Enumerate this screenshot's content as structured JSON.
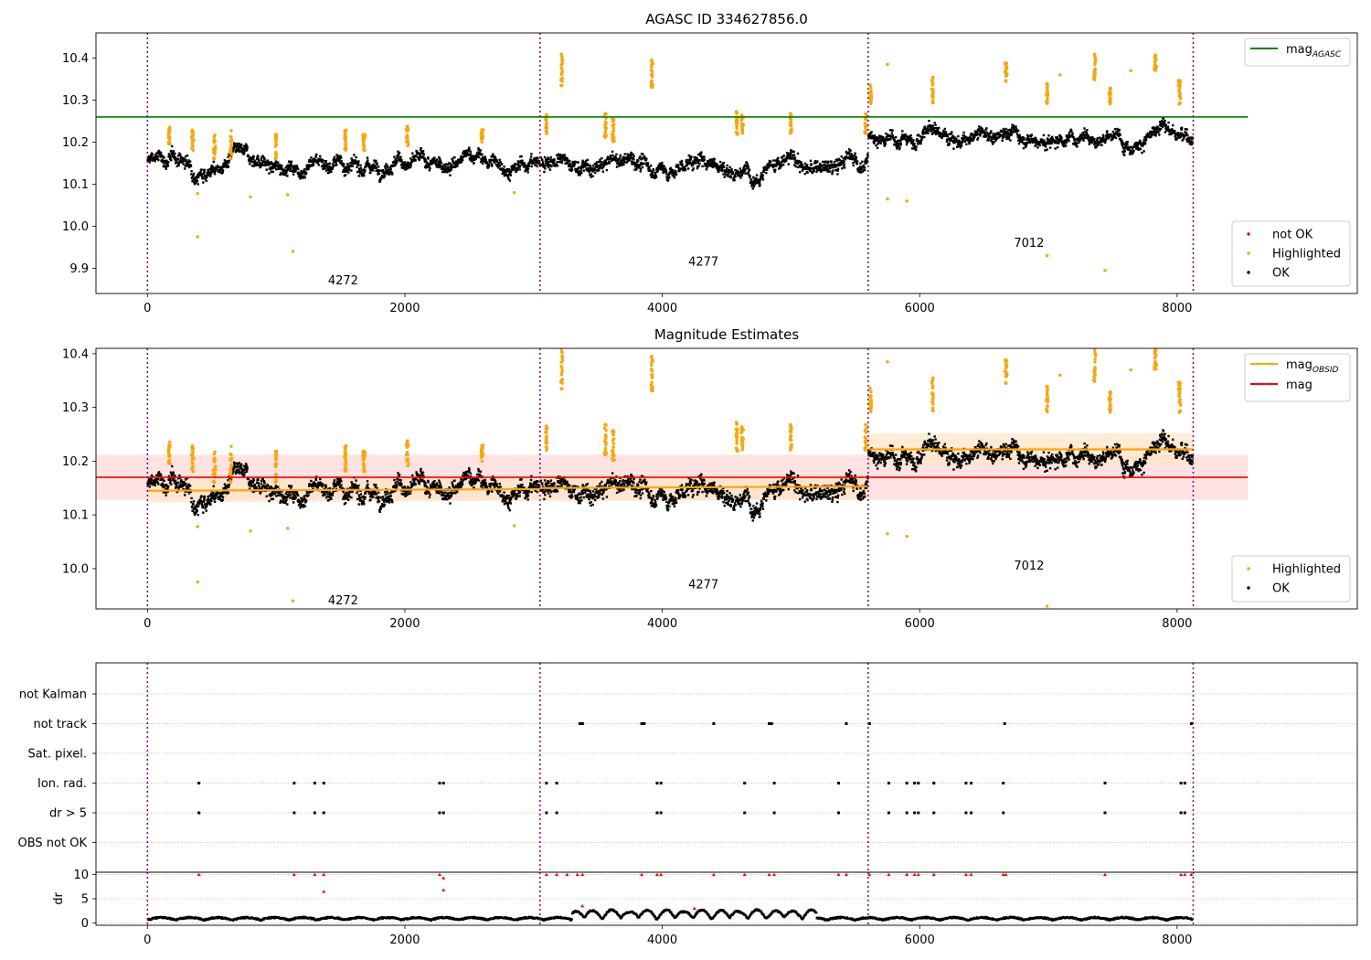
{
  "figure": {
    "title": "AGASC ID 334627856.0",
    "colors": {
      "ok": "#000000",
      "highlighted": "#ffa500",
      "not_ok": "#ff0000",
      "agasc_line": "#008000",
      "obs_boundary": "#800080",
      "mag_line": "#ff0000",
      "mag_band": "#ffdddd",
      "obsid_band": "#ffe6c8"
    }
  },
  "chart_data": [
    {
      "type": "scatter",
      "title": "",
      "xlim": [
        -400,
        9400
      ],
      "ylim": [
        9.84,
        10.46
      ],
      "xticks": [
        0,
        2000,
        4000,
        6000,
        8000
      ],
      "yticks": [
        9.9,
        10.0,
        10.1,
        10.2,
        10.3,
        10.4
      ],
      "obs_boundaries": [
        0,
        3050,
        5600,
        8125
      ],
      "obsids": [
        {
          "label": "4272",
          "x": 1520,
          "y": 9.87
        },
        {
          "label": "4277",
          "x": 4320,
          "y": 9.915
        },
        {
          "label": "7012",
          "x": 6850,
          "y": 9.96
        }
      ],
      "hlines": [
        {
          "name": "mag_AGASC",
          "y": 10.26,
          "x": [
            -400,
            8550
          ]
        }
      ],
      "legend_upper": [
        {
          "label": "mag",
          "sub": "AGASC",
          "kind": "line",
          "color": "#008000"
        }
      ],
      "legend_lower": [
        {
          "label": "not OK",
          "color": "#ff0000"
        },
        {
          "label": "Highlighted",
          "color": "#ffa500"
        },
        {
          "label": "OK",
          "color": "#000000"
        }
      ],
      "segments": [
        {
          "x0": 0,
          "x1": 3050,
          "base": 10.15,
          "noise": 0.035
        },
        {
          "x0": 3050,
          "x1": 5600,
          "base": 10.145,
          "noise": 0.038
        },
        {
          "x0": 5600,
          "x1": 8125,
          "base": 10.215,
          "noise": 0.035
        }
      ],
      "highlighted_clusters": [
        {
          "x": 170,
          "y": [
            10.19,
            10.24
          ]
        },
        {
          "x": 350,
          "y": [
            10.18,
            10.23
          ]
        },
        {
          "x": 520,
          "y": [
            10.16,
            10.22
          ]
        },
        {
          "x": 650,
          "y": [
            10.16,
            10.23
          ]
        },
        {
          "x": 1000,
          "y": [
            10.16,
            10.22
          ]
        },
        {
          "x": 1540,
          "y": [
            10.18,
            10.23
          ]
        },
        {
          "x": 1680,
          "y": [
            10.18,
            10.22
          ]
        },
        {
          "x": 2020,
          "y": [
            10.19,
            10.24
          ]
        },
        {
          "x": 2600,
          "y": [
            10.2,
            10.23
          ]
        },
        {
          "x": 3100,
          "y": [
            10.22,
            10.27
          ]
        },
        {
          "x": 3220,
          "y": [
            10.33,
            10.41
          ]
        },
        {
          "x": 3560,
          "y": [
            10.21,
            10.27
          ]
        },
        {
          "x": 3620,
          "y": [
            10.2,
            10.26
          ]
        },
        {
          "x": 3920,
          "y": [
            10.33,
            10.4
          ]
        },
        {
          "x": 4580,
          "y": [
            10.21,
            10.28
          ]
        },
        {
          "x": 4620,
          "y": [
            10.22,
            10.27
          ]
        },
        {
          "x": 5000,
          "y": [
            10.22,
            10.27
          ]
        },
        {
          "x": 5580,
          "y": [
            10.22,
            10.27
          ]
        },
        {
          "x": 5620,
          "y": [
            10.29,
            10.34
          ]
        },
        {
          "x": 6100,
          "y": [
            10.29,
            10.36
          ]
        },
        {
          "x": 6670,
          "y": [
            10.34,
            10.39
          ]
        },
        {
          "x": 6990,
          "y": [
            10.29,
            10.34
          ]
        },
        {
          "x": 7360,
          "y": [
            10.34,
            10.41
          ]
        },
        {
          "x": 7480,
          "y": [
            10.29,
            10.33
          ]
        },
        {
          "x": 7830,
          "y": [
            10.37,
            10.41
          ]
        },
        {
          "x": 8020,
          "y": [
            10.29,
            10.35
          ]
        }
      ],
      "highlighted_outliers": [
        {
          "x": 390,
          "y": 9.975
        },
        {
          "x": 1130,
          "y": 9.94
        },
        {
          "x": 5750,
          "y": 10.385
        },
        {
          "x": 5750,
          "y": 10.065
        },
        {
          "x": 5900,
          "y": 10.06
        },
        {
          "x": 6990,
          "y": 9.93
        },
        {
          "x": 7440,
          "y": 9.895
        },
        {
          "x": 7090,
          "y": 10.36
        },
        {
          "x": 7640,
          "y": 10.37
        },
        {
          "x": 2850,
          "y": 10.08
        },
        {
          "x": 800,
          "y": 10.07
        },
        {
          "x": 1090,
          "y": 10.075
        },
        {
          "x": 390,
          "y": 10.078
        }
      ]
    },
    {
      "type": "scatter",
      "title": "Magnitude Estimates",
      "xlim": [
        -400,
        9400
      ],
      "ylim": [
        9.925,
        10.41
      ],
      "xticks": [
        0,
        2000,
        4000,
        6000,
        8000
      ],
      "yticks": [
        10.0,
        10.1,
        10.2,
        10.3,
        10.4
      ],
      "obs_boundaries": [
        0,
        3050,
        5600,
        8125
      ],
      "obsids": [
        {
          "label": "4272",
          "x": 1520,
          "y": 9.94
        },
        {
          "label": "4277",
          "x": 4320,
          "y": 9.97
        },
        {
          "label": "7012",
          "x": 6850,
          "y": 10.005
        }
      ],
      "mag": {
        "value": 10.17,
        "band": [
          10.128,
          10.212
        ],
        "x": [
          -400,
          8550
        ]
      },
      "mag_obsid": [
        {
          "x0": 0,
          "x1": 3050,
          "y0": 10.145,
          "y1": 10.148,
          "band": 0.022
        },
        {
          "x0": 3050,
          "x1": 5600,
          "y0": 10.15,
          "y1": 10.153,
          "band": 0.025
        },
        {
          "x0": 5600,
          "x1": 8125,
          "y0": 10.222,
          "y1": 10.222,
          "band": 0.03
        }
      ],
      "legend_upper": [
        {
          "label": "mag",
          "sub": "OBSID",
          "kind": "line",
          "color": "#ffa500"
        },
        {
          "label": "mag",
          "sub": "",
          "kind": "line",
          "color": "#ff0000"
        }
      ],
      "legend_lower": [
        {
          "label": "Highlighted",
          "color": "#ffa500"
        },
        {
          "label": "OK",
          "color": "#000000"
        }
      ]
    },
    {
      "type": "scatter",
      "title": "",
      "xlim": [
        -400,
        9400
      ],
      "xticks": [
        0,
        2000,
        4000,
        6000,
        8000
      ],
      "obs_boundaries": [
        0,
        3050,
        5600,
        8125
      ],
      "flag_rows": [
        "not Kalman",
        "not track",
        "Sat. pixel.",
        "Ion. rad.",
        "dr > 5",
        "OBS not OK"
      ],
      "flag_points": {
        "not track": [
          3360,
          3380,
          3840,
          3860,
          4400,
          4830,
          4850,
          5430,
          5610,
          6660,
          8110
        ],
        "Ion. rad.": [
          400,
          1140,
          1300,
          1370,
          2270,
          2300,
          3100,
          3180,
          3960,
          3990,
          4640,
          4870,
          5370,
          5760,
          5900,
          5960,
          5990,
          6110,
          6360,
          6400,
          6650,
          7440,
          8030,
          8060
        ],
        "dr > 5": [
          400,
          1140,
          1300,
          1370,
          2270,
          2300,
          3100,
          3180,
          3960,
          3990,
          4640,
          4870,
          5370,
          5760,
          5900,
          5960,
          5990,
          6110,
          6360,
          6400,
          6650,
          7440,
          8030,
          8060
        ]
      },
      "dr_ylabel": "dr",
      "dr_yticks": [
        0,
        5,
        10
      ],
      "dr_ylim": [
        -0.5,
        10.5
      ],
      "dr_spikes": [
        {
          "x": 400,
          "y": 10
        },
        {
          "x": 1140,
          "y": 10
        },
        {
          "x": 1300,
          "y": 10
        },
        {
          "x": 1370,
          "y": 10
        },
        {
          "x": 1370,
          "y": 6.5
        },
        {
          "x": 2270,
          "y": 10
        },
        {
          "x": 2300,
          "y": 9.3
        },
        {
          "x": 2300,
          "y": 6.8
        },
        {
          "x": 3100,
          "y": 10
        },
        {
          "x": 3180,
          "y": 10
        },
        {
          "x": 3260,
          "y": 10
        },
        {
          "x": 3340,
          "y": 10
        },
        {
          "x": 3380,
          "y": 10
        },
        {
          "x": 3840,
          "y": 10
        },
        {
          "x": 3960,
          "y": 10
        },
        {
          "x": 3990,
          "y": 10
        },
        {
          "x": 4400,
          "y": 10
        },
        {
          "x": 4640,
          "y": 10
        },
        {
          "x": 4830,
          "y": 10
        },
        {
          "x": 4870,
          "y": 10
        },
        {
          "x": 5370,
          "y": 10
        },
        {
          "x": 5430,
          "y": 10
        },
        {
          "x": 5610,
          "y": 10
        },
        {
          "x": 5760,
          "y": 10
        },
        {
          "x": 5900,
          "y": 10
        },
        {
          "x": 5960,
          "y": 10
        },
        {
          "x": 5990,
          "y": 10
        },
        {
          "x": 6110,
          "y": 10
        },
        {
          "x": 6360,
          "y": 10
        },
        {
          "x": 6400,
          "y": 10
        },
        {
          "x": 6650,
          "y": 10
        },
        {
          "x": 6670,
          "y": 10
        },
        {
          "x": 7440,
          "y": 10
        },
        {
          "x": 8030,
          "y": 10
        },
        {
          "x": 8060,
          "y": 10
        },
        {
          "x": 8110,
          "y": 10
        },
        {
          "x": 3380,
          "y": 3.5
        },
        {
          "x": 4250,
          "y": 3.0
        }
      ]
    }
  ]
}
